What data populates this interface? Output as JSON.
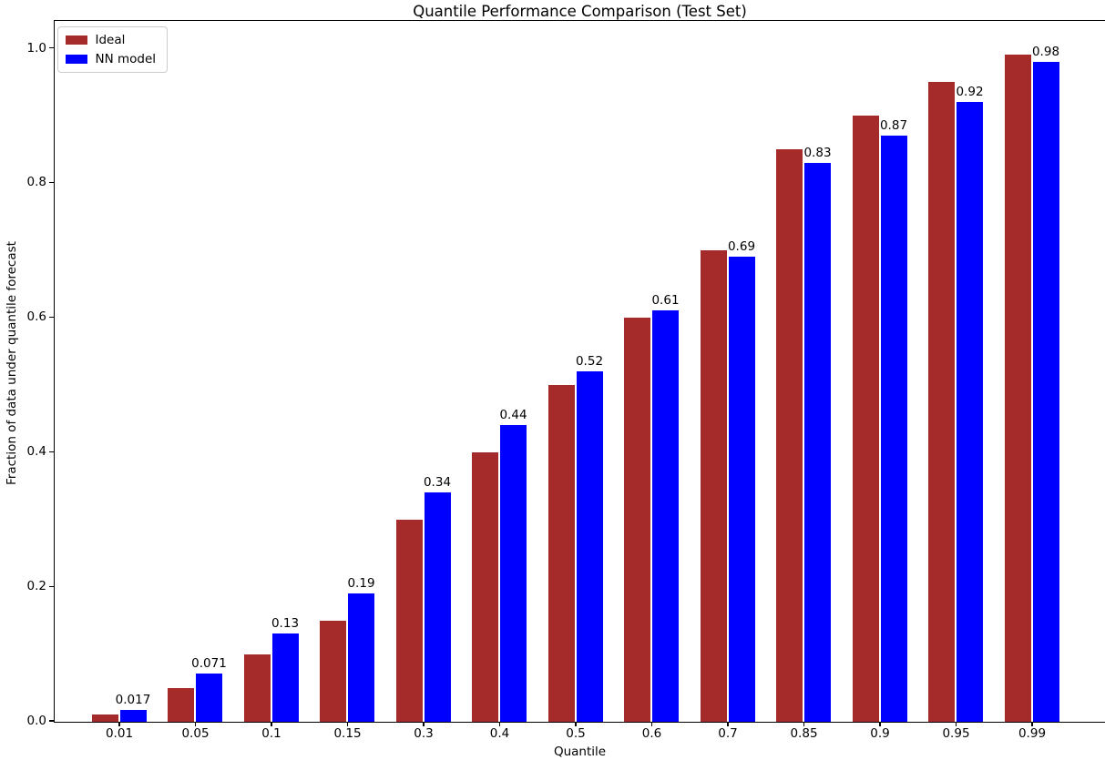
{
  "chart_data": {
    "type": "bar",
    "title": "Quantile Performance Comparison (Test Set)",
    "xlabel": "Quantile",
    "ylabel": "Fraction of data under quantile forecast",
    "categories": [
      "0.01",
      "0.05",
      "0.1",
      "0.15",
      "0.3",
      "0.4",
      "0.5",
      "0.6",
      "0.7",
      "0.85",
      "0.9",
      "0.95",
      "0.99"
    ],
    "series": [
      {
        "name": "Ideal",
        "color": "#A52A2A",
        "values": [
          0.01,
          0.05,
          0.1,
          0.15,
          0.3,
          0.4,
          0.5,
          0.6,
          0.7,
          0.85,
          0.9,
          0.95,
          0.99
        ]
      },
      {
        "name": "NN model",
        "color": "#0000FF",
        "values": [
          0.017,
          0.071,
          0.13,
          0.19,
          0.34,
          0.44,
          0.52,
          0.61,
          0.69,
          0.83,
          0.87,
          0.92,
          0.98
        ]
      }
    ],
    "bar_labels": [
      "0.017",
      "0.071",
      "0.13",
      "0.19",
      "0.34",
      "0.44",
      "0.52",
      "0.61",
      "0.69",
      "0.83",
      "0.87",
      "0.92",
      "0.98"
    ],
    "bar_labels_on_series": "NN model",
    "yticks": [
      "0.0",
      "0.2",
      "0.4",
      "0.6",
      "0.8",
      "1.0"
    ],
    "ylim": [
      0,
      1.04
    ],
    "grid": false,
    "legend_position": "upper-left",
    "axis_color": "#000000",
    "background_color": "#FFFFFF",
    "text_color": "#000000"
  }
}
